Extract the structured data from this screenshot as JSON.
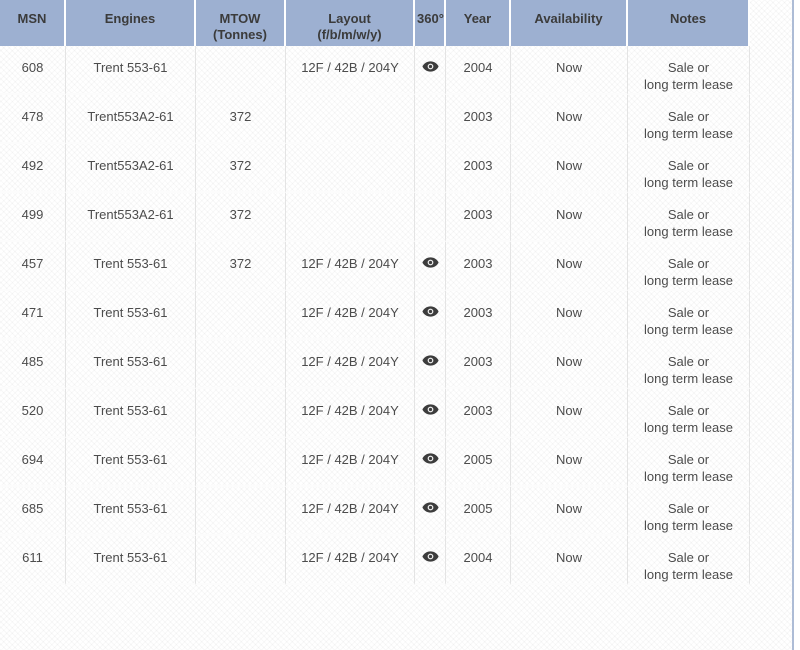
{
  "colors": {
    "header_bg": "#9db0d1",
    "header_text": "#3b3b3b",
    "body_text": "#4c4c4c",
    "column_border": "#e4e4e4",
    "page_border": "#adbcd6",
    "eye_icon": "#3c3c3c"
  },
  "table": {
    "columns": [
      {
        "key": "msn",
        "label": "MSN",
        "sublabel": ""
      },
      {
        "key": "engines",
        "label": "Engines",
        "sublabel": ""
      },
      {
        "key": "mtow",
        "label": "MTOW",
        "sublabel": "(Tonnes)"
      },
      {
        "key": "layout",
        "label": "Layout",
        "sublabel": "(f/b/m/w/y)"
      },
      {
        "key": "view360",
        "label": "360°",
        "sublabel": ""
      },
      {
        "key": "year",
        "label": "Year",
        "sublabel": ""
      },
      {
        "key": "availability",
        "label": "Availability",
        "sublabel": ""
      },
      {
        "key": "notes",
        "label": "Notes",
        "sublabel": ""
      }
    ],
    "rows": [
      {
        "msn": "608",
        "engines": "Trent 553-61",
        "mtow": "",
        "layout": "12F / 42B / 204Y",
        "has_360": true,
        "year": "2004",
        "availability": "Now",
        "notes": [
          "Sale or",
          "long term lease"
        ]
      },
      {
        "msn": "478",
        "engines": "Trent553A2-61",
        "mtow": "372",
        "layout": "",
        "has_360": false,
        "year": "2003",
        "availability": "Now",
        "notes": [
          "Sale or",
          "long term lease"
        ]
      },
      {
        "msn": "492",
        "engines": "Trent553A2-61",
        "mtow": "372",
        "layout": "",
        "has_360": false,
        "year": "2003",
        "availability": "Now",
        "notes": [
          "Sale or",
          "long term lease"
        ]
      },
      {
        "msn": "499",
        "engines": "Trent553A2-61",
        "mtow": "372",
        "layout": "",
        "has_360": false,
        "year": "2003",
        "availability": "Now",
        "notes": [
          "Sale or",
          "long term lease"
        ]
      },
      {
        "msn": "457",
        "engines": "Trent 553-61",
        "mtow": "372",
        "layout": "12F / 42B / 204Y",
        "has_360": true,
        "year": "2003",
        "availability": "Now",
        "notes": [
          "Sale or",
          "long term lease"
        ]
      },
      {
        "msn": "471",
        "engines": "Trent 553-61",
        "mtow": "",
        "layout": "12F / 42B / 204Y",
        "has_360": true,
        "year": "2003",
        "availability": "Now",
        "notes": [
          "Sale or",
          "long term lease"
        ]
      },
      {
        "msn": "485",
        "engines": "Trent 553-61",
        "mtow": "",
        "layout": "12F / 42B / 204Y",
        "has_360": true,
        "year": "2003",
        "availability": "Now",
        "notes": [
          "Sale or",
          "long term lease"
        ]
      },
      {
        "msn": "520",
        "engines": "Trent 553-61",
        "mtow": "",
        "layout": "12F / 42B / 204Y",
        "has_360": true,
        "year": "2003",
        "availability": "Now",
        "notes": [
          "Sale or",
          "long term lease"
        ]
      },
      {
        "msn": "694",
        "engines": "Trent 553-61",
        "mtow": "",
        "layout": "12F / 42B / 204Y",
        "has_360": true,
        "year": "2005",
        "availability": "Now",
        "notes": [
          "Sale or",
          "long term lease"
        ]
      },
      {
        "msn": "685",
        "engines": "Trent 553-61",
        "mtow": "",
        "layout": "12F / 42B / 204Y",
        "has_360": true,
        "year": "2005",
        "availability": "Now",
        "notes": [
          "Sale or",
          "long term lease"
        ]
      },
      {
        "msn": "611",
        "engines": "Trent 553-61",
        "mtow": "",
        "layout": "12F / 42B / 204Y",
        "has_360": true,
        "year": "2004",
        "availability": "Now",
        "notes": [
          "Sale or",
          "long term lease"
        ]
      }
    ]
  },
  "icons": {
    "eye": "eye-360-view-icon"
  }
}
